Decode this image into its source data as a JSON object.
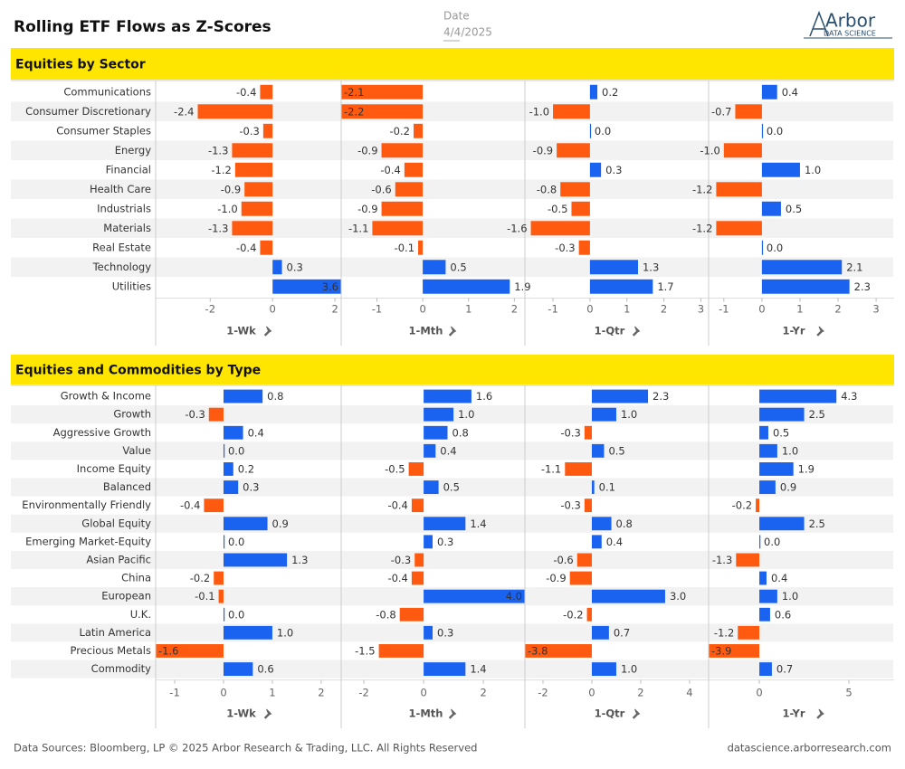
{
  "header": {
    "title": "Rolling ETF Flows as Z-Scores",
    "date_label": "Date",
    "date": "4/4/2025",
    "logo": "Arbor",
    "logo_sub": "DATA SCIENCE"
  },
  "footer": {
    "left": "Data Sources: Bloomberg, LP © 2025 Arbor Research & Trading, LLC. All Rights Reserved",
    "right": "datascience.arborresearch.com"
  },
  "chart_data": [
    {
      "type": "bar",
      "title": "Equities by Sector",
      "positive_color": "#1a62f0",
      "negative_color": "#ff5a0f",
      "categories": [
        "Communications",
        "Consumer Discretionary",
        "Consumer Staples",
        "Energy",
        "Financial",
        "Health Care",
        "Industrials",
        "Materials",
        "Real Estate",
        "Technology",
        "Utilities"
      ],
      "series": [
        {
          "name": "1-Wk",
          "values": [
            -0.4,
            -2.4,
            -0.3,
            -1.3,
            -1.2,
            -0.9,
            -1.0,
            -1.3,
            -0.4,
            0.3,
            3.6
          ],
          "value_labels": [
            "-0.4",
            "-2.4",
            "-0.3",
            "-1.3",
            "-1.2",
            "-0.9",
            "-1.0",
            "-1.3",
            "-0.4",
            "0.3",
            "3.6"
          ],
          "xlim": [
            -3.75,
            2.2
          ],
          "xticks": [
            -2,
            0,
            2
          ]
        },
        {
          "name": "1-Mth",
          "values": [
            -2.1,
            -2.2,
            -0.2,
            -0.9,
            -0.4,
            -0.6,
            -0.9,
            -1.1,
            -0.1,
            0.5,
            1.9
          ],
          "value_labels": [
            "-2.1",
            "-2.2",
            "-0.2",
            "-0.9",
            "-0.4",
            "-0.6",
            "-0.9",
            "-1.1",
            "-0.1",
            "0.5",
            "1.9"
          ],
          "xlim": [
            -1.78,
            2.23
          ],
          "xticks": [
            -1,
            0,
            1,
            2
          ]
        },
        {
          "name": "1-Qtr",
          "values": [
            0.2,
            -1.0,
            0.0,
            -0.9,
            0.3,
            -0.8,
            -0.5,
            -1.6,
            -0.3,
            1.3,
            1.7
          ],
          "value_labels": [
            "0.2",
            "-1.0",
            "0.0",
            "-0.9",
            "0.3",
            "-0.8",
            "-0.5",
            "-1.6",
            "-0.3",
            "1.3",
            "1.7"
          ],
          "xlim": [
            -1.76,
            3.21
          ],
          "xticks": [
            -1,
            0,
            1,
            2,
            3
          ]
        },
        {
          "name": "1-Yr",
          "values": [
            0.4,
            -0.7,
            0.0,
            -1.0,
            1.0,
            -1.2,
            0.5,
            -1.2,
            0.0,
            2.1,
            2.3
          ],
          "value_labels": [
            "0.4",
            "-0.7",
            "0.0",
            "-1.0",
            "1.0",
            "-1.2",
            "0.5",
            "-1.2",
            "0.0",
            "2.1",
            "2.3"
          ],
          "xlim": [
            -1.4,
            3.45
          ],
          "xticks": [
            -1,
            0,
            1,
            2,
            3
          ]
        }
      ]
    },
    {
      "type": "bar",
      "title": "Equities and Commodities by Type",
      "positive_color": "#1a62f0",
      "negative_color": "#ff5a0f",
      "categories": [
        "Growth & Income",
        "Growth",
        "Aggressive Growth",
        "Value",
        "Income Equity",
        "Balanced",
        "Environmentally Friendly",
        "Global Equity",
        "Emerging Market-Equity",
        "Asian Pacific",
        "China",
        "European",
        "U.K.",
        "Latin America",
        "Precious Metals",
        "Commodity"
      ],
      "series": [
        {
          "name": "1-Wk",
          "values": [
            0.8,
            -0.3,
            0.4,
            0.0,
            0.2,
            0.3,
            -0.4,
            0.9,
            0.0,
            1.3,
            -0.2,
            -0.1,
            0.0,
            1.0,
            -1.6,
            0.6
          ],
          "value_labels": [
            "0.8",
            "-0.3",
            "0.4",
            "0.0",
            "0.2",
            "0.3",
            "-0.4",
            "0.9",
            "0.0",
            "1.3",
            "-0.2",
            "-0.1",
            "0.0",
            "1.0",
            "-1.6",
            "0.6"
          ],
          "xlim": [
            -1.39,
            2.41
          ],
          "xticks": [
            -1,
            0,
            1,
            2
          ]
        },
        {
          "name": "1-Mth",
          "values": [
            1.6,
            1.0,
            0.8,
            0.4,
            -0.5,
            0.5,
            -0.4,
            1.4,
            0.3,
            -0.3,
            -0.4,
            4.0,
            -0.8,
            0.3,
            -1.5,
            1.4
          ],
          "value_labels": [
            "1.6",
            "1.0",
            "0.8",
            "0.4",
            "-0.5",
            "0.5",
            "-0.4",
            "1.4",
            "0.3",
            "-0.3",
            "-0.4",
            "4.0",
            "-0.8",
            "0.3",
            "-1.5",
            "1.4"
          ],
          "xlim": [
            -2.76,
            3.39
          ],
          "xticks": [
            -2,
            0,
            2
          ]
        },
        {
          "name": "1-Qtr",
          "values": [
            2.3,
            1.0,
            -0.3,
            0.5,
            -1.1,
            0.1,
            -0.3,
            0.8,
            0.4,
            -0.6,
            -0.9,
            3.0,
            -0.2,
            0.7,
            -3.8,
            1.0
          ],
          "value_labels": [
            "2.3",
            "1.0",
            "-0.3",
            "0.5",
            "-1.1",
            "0.1",
            "-0.3",
            "0.8",
            "0.4",
            "-0.6",
            "-0.9",
            "3.0",
            "-0.2",
            "0.7",
            "-3.8",
            "1.0"
          ],
          "xlim": [
            -2.74,
            4.78
          ],
          "xticks": [
            -2,
            0,
            2,
            4
          ]
        },
        {
          "name": "1-Yr",
          "values": [
            4.3,
            2.5,
            0.5,
            1.0,
            1.9,
            0.9,
            -0.2,
            2.5,
            0.0,
            -1.3,
            0.4,
            1.0,
            0.6,
            -1.2,
            -3.9,
            0.7
          ],
          "value_labels": [
            "4.3",
            "2.5",
            "0.5",
            "1.0",
            "1.9",
            "0.9",
            "-0.2",
            "2.5",
            "0.0",
            "-1.3",
            "0.4",
            "1.0",
            "0.6",
            "-1.2",
            "-3.9",
            "0.7"
          ],
          "xlim": [
            -2.83,
            7.47
          ],
          "xticks": [
            0,
            5
          ]
        }
      ]
    }
  ]
}
